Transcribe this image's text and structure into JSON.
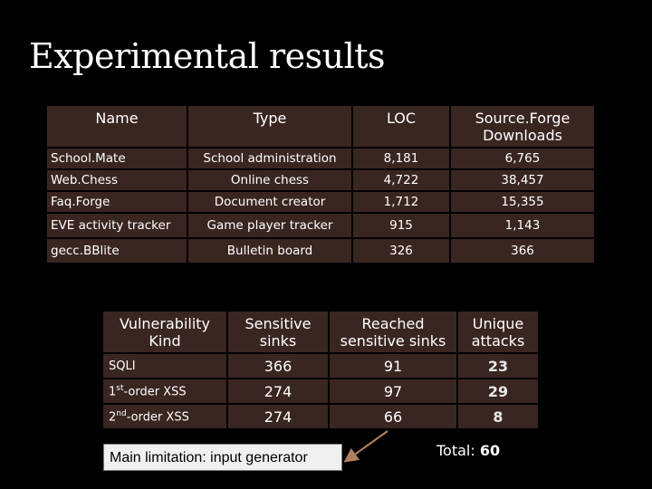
{
  "title": "Experimental results",
  "table1": {
    "headers": [
      "Name",
      "Type",
      "LOC",
      "Source.Forge Downloads"
    ],
    "rows": [
      [
        "School.Mate",
        "School administration",
        "8,181",
        "6,765"
      ],
      [
        "Web.Chess",
        "Online chess",
        "4,722",
        "38,457"
      ],
      [
        "Faq.Forge",
        "Document creator",
        "1,712",
        "15,355"
      ],
      [
        "EVE activity tracker",
        "Game player tracker",
        "915",
        "1,143"
      ],
      [
        "gecc.BBlite",
        "Bulletin board",
        "326",
        "366"
      ]
    ]
  },
  "table2": {
    "headers": [
      "Vulnerability Kind",
      "Sensitive sinks",
      "Reached sensitive sinks",
      "Unique attacks"
    ],
    "rows": [
      [
        "SQLI",
        "366",
        "91",
        "23"
      ],
      [
        "1st-order XSS",
        "274",
        "97",
        "29"
      ],
      [
        "2nd-order XSS",
        "274",
        "66",
        "8"
      ]
    ]
  },
  "callout": "Main limitation: input generator",
  "total_label": "Total:",
  "total_value": "60"
}
